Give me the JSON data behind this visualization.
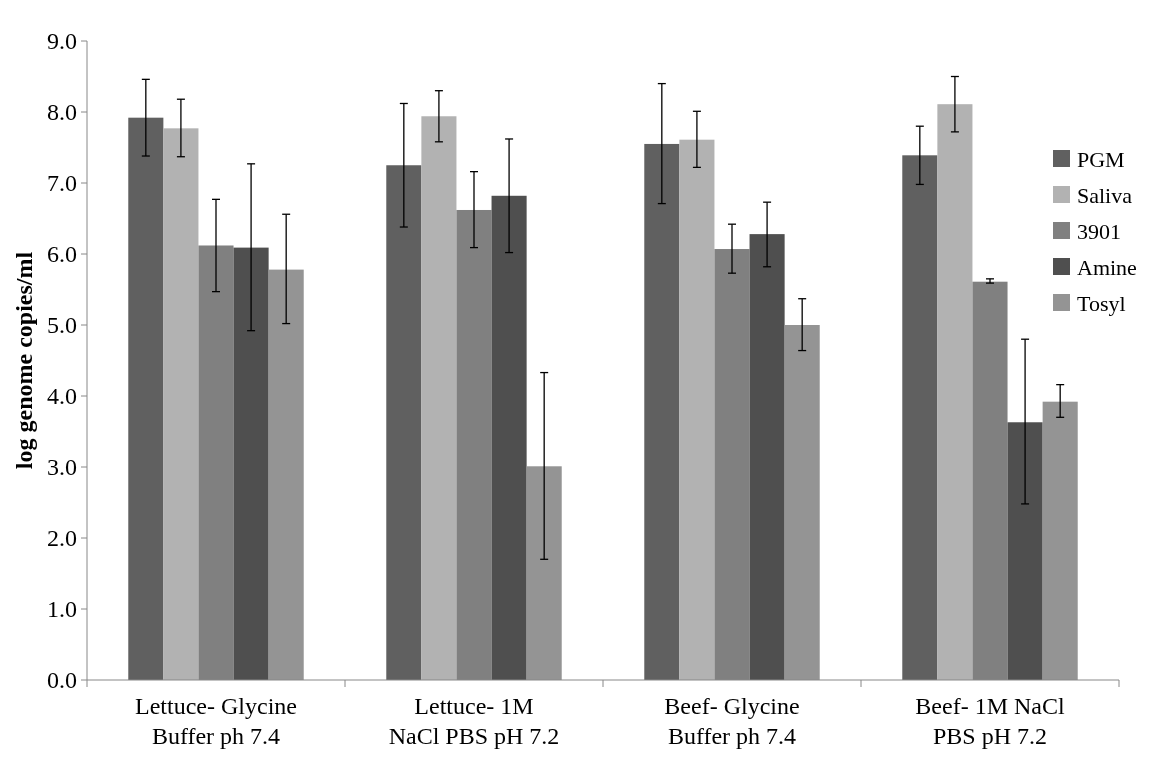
{
  "chart_data": {
    "type": "bar",
    "ylabel": "log genome copies/ml",
    "categories": [
      "Lettuce- Glycine\nBuffer ph 7.4",
      "Lettuce- 1M\nNaCl PBS pH 7.2",
      "Beef- Glycine\nBuffer ph 7.4",
      "Beef- 1M NaCl\nPBS pH 7.2"
    ],
    "series": [
      {
        "name": "PGM",
        "color": "#606060",
        "values": [
          7.92,
          7.25,
          7.55,
          7.39
        ],
        "errors": [
          [
            7.38,
            8.46
          ],
          [
            6.38,
            8.12
          ],
          [
            6.71,
            8.4
          ],
          [
            6.98,
            7.8
          ]
        ]
      },
      {
        "name": "Saliva",
        "color": "#b2b2b2",
        "values": [
          7.77,
          7.94,
          7.61,
          8.11
        ],
        "errors": [
          [
            7.37,
            8.18
          ],
          [
            7.58,
            8.3
          ],
          [
            7.22,
            8.01
          ],
          [
            7.72,
            8.5
          ]
        ]
      },
      {
        "name": "3901",
        "color": "#808080",
        "values": [
          6.12,
          6.62,
          6.07,
          5.61
        ],
        "errors": [
          [
            5.47,
            6.77
          ],
          [
            6.09,
            7.16
          ],
          [
            5.73,
            6.42
          ],
          [
            5.59,
            5.65
          ]
        ]
      },
      {
        "name": "Amine",
        "color": "#4f4f4f",
        "values": [
          6.09,
          6.82,
          6.28,
          3.63
        ],
        "errors": [
          [
            4.92,
            7.27
          ],
          [
            6.02,
            7.62
          ],
          [
            5.82,
            6.73
          ],
          [
            2.48,
            4.8
          ]
        ]
      },
      {
        "name": "Tosyl",
        "color": "#949494",
        "values": [
          5.78,
          3.01,
          5.0,
          3.92
        ],
        "errors": [
          [
            5.02,
            6.56
          ],
          [
            1.7,
            4.33
          ],
          [
            4.64,
            5.37
          ],
          [
            3.7,
            4.16
          ]
        ]
      }
    ],
    "ylim": [
      0,
      9
    ],
    "yticks": [
      {
        "value": 0,
        "label": "0.0"
      },
      {
        "value": 1,
        "label": "1.0"
      },
      {
        "value": 2,
        "label": "2.0"
      },
      {
        "value": 3,
        "label": "3.0"
      },
      {
        "value": 4,
        "label": "4.0"
      },
      {
        "value": 5,
        "label": "5.0"
      },
      {
        "value": 6,
        "label": "6.0"
      },
      {
        "value": 7,
        "label": "7.0"
      },
      {
        "value": 8,
        "label": "8.0"
      },
      {
        "value": 9,
        "label": "9.0"
      }
    ],
    "grid": false,
    "legend": "right"
  }
}
